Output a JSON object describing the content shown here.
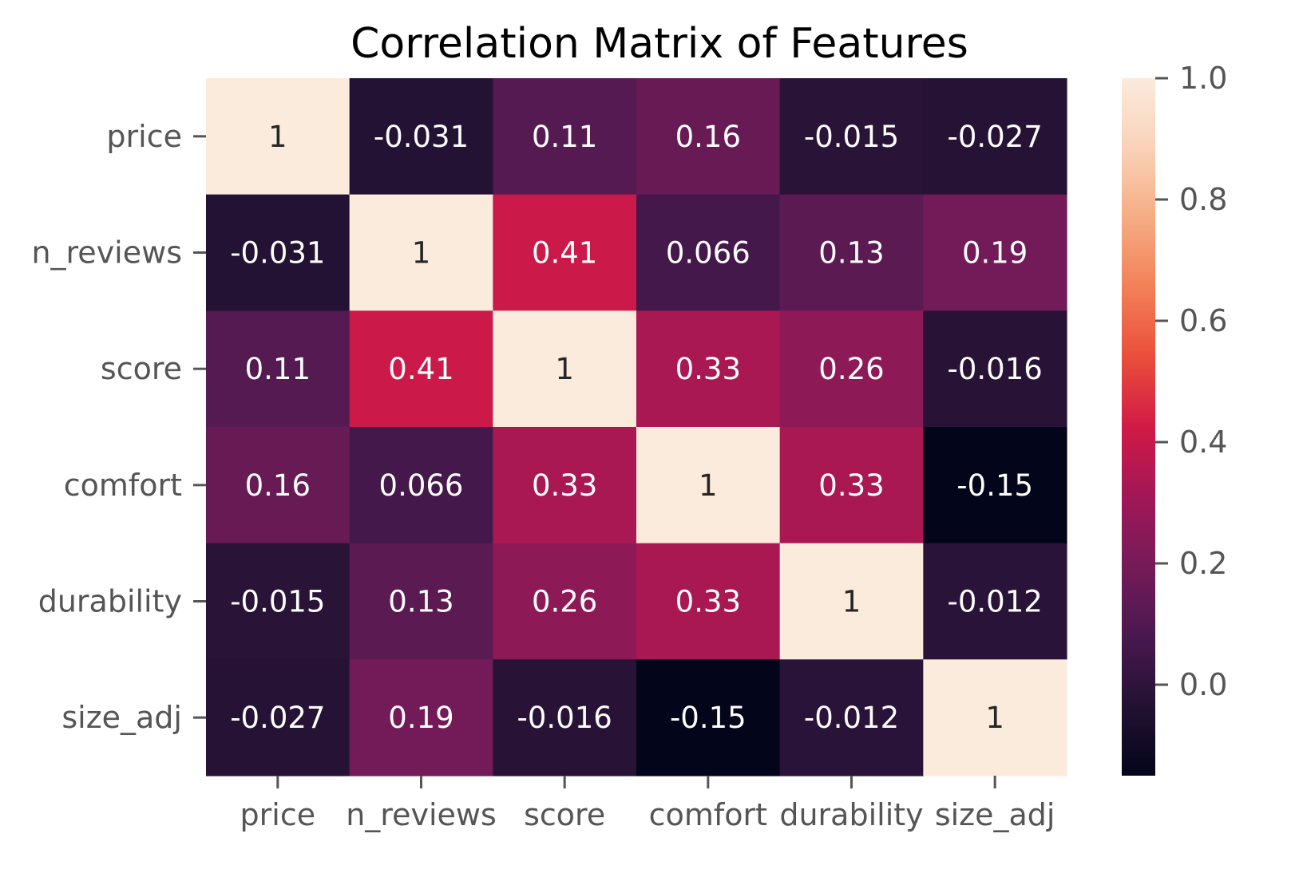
{
  "chart_data": {
    "type": "heatmap",
    "title": "Correlation Matrix of Features",
    "xlabel": "",
    "ylabel": "",
    "x_categories": [
      "price",
      "n_reviews",
      "score",
      "comfort",
      "durability",
      "size_adj"
    ],
    "y_categories": [
      "price",
      "n_reviews",
      "score",
      "comfort",
      "durability",
      "size_adj"
    ],
    "values": [
      [
        1,
        -0.031,
        0.11,
        0.16,
        -0.015,
        -0.027
      ],
      [
        -0.031,
        1,
        0.41,
        0.066,
        0.13,
        0.19
      ],
      [
        0.11,
        0.41,
        1,
        0.33,
        0.26,
        -0.016
      ],
      [
        0.16,
        0.066,
        0.33,
        1,
        0.33,
        -0.15
      ],
      [
        -0.015,
        0.13,
        0.26,
        0.33,
        1,
        -0.012
      ],
      [
        -0.027,
        0.19,
        -0.016,
        -0.15,
        -0.012,
        1
      ]
    ],
    "annotations": [
      [
        "1",
        "-0.031",
        "0.11",
        "0.16",
        "-0.015",
        "-0.027"
      ],
      [
        "-0.031",
        "1",
        "0.41",
        "0.066",
        "0.13",
        "0.19"
      ],
      [
        "0.11",
        "0.41",
        "1",
        "0.33",
        "0.26",
        "-0.016"
      ],
      [
        "0.16",
        "0.066",
        "0.33",
        "1",
        "0.33",
        "-0.15"
      ],
      [
        "-0.015",
        "0.13",
        "0.26",
        "0.33",
        "1",
        "-0.012"
      ],
      [
        "-0.027",
        "0.19",
        "-0.016",
        "-0.15",
        "-0.012",
        "1"
      ]
    ],
    "colorbar": {
      "range": [
        -0.15,
        1.0
      ],
      "ticks": [
        0.0,
        0.2,
        0.4,
        0.6,
        0.8,
        1.0
      ],
      "tick_labels": [
        "0.0",
        "0.2",
        "0.4",
        "0.6",
        "0.8",
        "1.0"
      ]
    },
    "colormap": "rocket",
    "grid": false,
    "legend": "colorbar-right"
  }
}
